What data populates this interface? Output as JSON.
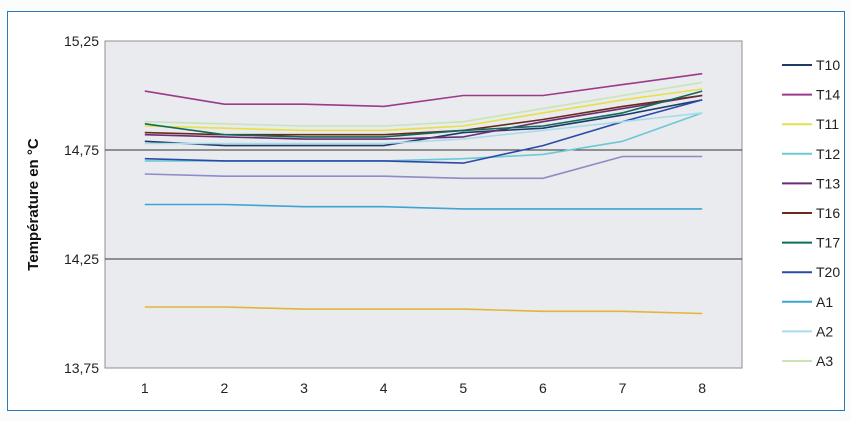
{
  "chart_data": {
    "type": "line",
    "ylabel": "Température en °C",
    "xlabel": "",
    "title": "",
    "x": [
      1,
      2,
      3,
      4,
      5,
      6,
      7,
      8
    ],
    "x_tick_labels": [
      "1",
      "2",
      "3",
      "4",
      "5",
      "6",
      "7",
      "8"
    ],
    "ylim": [
      13.75,
      15.25
    ],
    "y_ticks": [
      13.75,
      14.25,
      14.75,
      15.25
    ],
    "y_tick_labels": [
      "13,75",
      "14,25",
      "14,75",
      "15,25"
    ],
    "grid": "horizontal major lines",
    "legend_position": "right",
    "series": [
      {
        "name": "T10",
        "color": "#1f3a68",
        "values": [
          14.79,
          14.77,
          14.77,
          14.77,
          14.83,
          14.85,
          14.91,
          14.98
        ]
      },
      {
        "name": "T14",
        "color": "#9c3a8a",
        "values": [
          15.02,
          14.96,
          14.96,
          14.95,
          15.0,
          15.0,
          15.05,
          15.1
        ]
      },
      {
        "name": "T11",
        "color": "#e6e04a",
        "values": [
          14.86,
          14.85,
          14.84,
          14.84,
          14.86,
          14.92,
          14.98,
          15.03
        ]
      },
      {
        "name": "T12",
        "color": "#6cc9d6",
        "values": [
          14.7,
          14.7,
          14.7,
          14.7,
          14.71,
          14.73,
          14.79,
          14.92
        ]
      },
      {
        "name": "T13",
        "color": "#6b2d74",
        "values": [
          14.82,
          14.81,
          14.8,
          14.8,
          14.81,
          14.88,
          14.94,
          15.0
        ]
      },
      {
        "name": "T16",
        "color": "#6d2a1b",
        "values": [
          14.83,
          14.82,
          14.82,
          14.82,
          14.84,
          14.89,
          14.95,
          15.0
        ]
      },
      {
        "name": "T17",
        "color": "#0f6b5a",
        "values": [
          14.87,
          14.82,
          14.81,
          14.81,
          14.84,
          14.86,
          14.92,
          15.02
        ]
      },
      {
        "name": "T20",
        "color": "#2b4aa8",
        "values": [
          14.71,
          14.7,
          14.7,
          14.7,
          14.69,
          14.77,
          14.88,
          14.98
        ]
      },
      {
        "name": "A1",
        "color": "#3fa4d4",
        "values": [
          14.5,
          14.5,
          14.49,
          14.49,
          14.48,
          14.48,
          14.48,
          14.48
        ]
      },
      {
        "name": "A2",
        "color": "#a8dcea",
        "values": [
          14.78,
          14.78,
          14.78,
          14.78,
          14.8,
          14.84,
          14.88,
          14.92
        ]
      },
      {
        "name": "A3",
        "color": "#c7e6b6",
        "values": [
          14.88,
          14.87,
          14.86,
          14.86,
          14.88,
          14.94,
          15.0,
          15.06
        ]
      },
      {
        "name": "",
        "color": "#8f8ac8",
        "values": [
          14.64,
          14.63,
          14.63,
          14.63,
          14.62,
          14.62,
          14.72,
          14.72
        ]
      },
      {
        "name": "",
        "color": "#e2b53a",
        "values": [
          14.03,
          14.03,
          14.02,
          14.02,
          14.02,
          14.01,
          14.01,
          14.0
        ]
      }
    ]
  }
}
